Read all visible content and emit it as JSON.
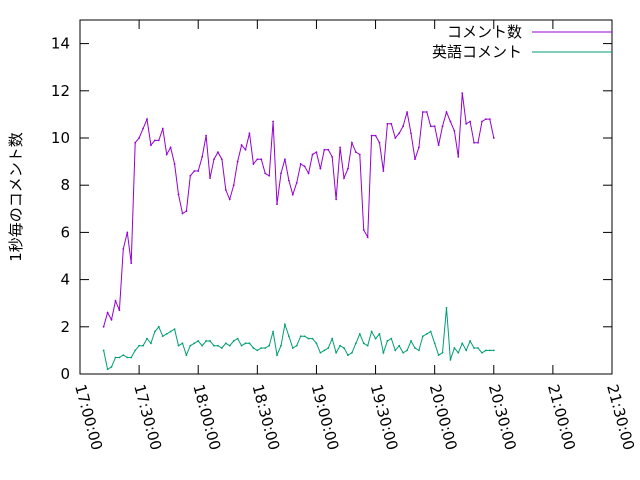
{
  "chart_data": {
    "type": "line",
    "title": "",
    "xlabel": "",
    "ylabel": "1秒毎のコメント数",
    "xlim": [
      "17:00:00",
      "21:30:00"
    ],
    "ylim": [
      0,
      15
    ],
    "grid": false,
    "legend_position": "top-right",
    "x_ticks": [
      "17:00:00",
      "17:30:00",
      "18:00:00",
      "18:30:00",
      "19:00:00",
      "19:30:00",
      "20:00:00",
      "20:30:00",
      "21:00:00",
      "21:30:00"
    ],
    "y_ticks": [
      "0",
      "2",
      "4",
      "6",
      "8",
      "10",
      "12",
      "14"
    ],
    "series": [
      {
        "name": "コメント数",
        "color": "#9400d3",
        "points": [
          [
            "17:12:00",
            2.0
          ],
          [
            "17:14:00",
            2.6
          ],
          [
            "17:16:00",
            2.3
          ],
          [
            "17:18:00",
            3.1
          ],
          [
            "17:20:00",
            2.7
          ],
          [
            "17:22:00",
            5.3
          ],
          [
            "17:24:00",
            6.0
          ],
          [
            "17:26:00",
            4.7
          ],
          [
            "17:28:00",
            9.8
          ],
          [
            "17:30:00",
            10.0
          ],
          [
            "17:32:00",
            10.4
          ],
          [
            "17:34:00",
            10.8
          ],
          [
            "17:36:00",
            9.7
          ],
          [
            "17:38:00",
            9.9
          ],
          [
            "17:40:00",
            9.9
          ],
          [
            "17:42:00",
            10.4
          ],
          [
            "17:44:00",
            9.3
          ],
          [
            "17:46:00",
            9.6
          ],
          [
            "17:48:00",
            8.9
          ],
          [
            "17:50:00",
            7.6
          ],
          [
            "17:52:00",
            6.8
          ],
          [
            "17:54:00",
            6.9
          ],
          [
            "17:56:00",
            8.4
          ],
          [
            "17:58:00",
            8.6
          ],
          [
            "18:00:00",
            8.6
          ],
          [
            "18:02:00",
            9.2
          ],
          [
            "18:04:00",
            10.1
          ],
          [
            "18:06:00",
            8.3
          ],
          [
            "18:08:00",
            9.1
          ],
          [
            "18:10:00",
            9.4
          ],
          [
            "18:12:00",
            9.1
          ],
          [
            "18:14:00",
            7.8
          ],
          [
            "18:16:00",
            7.4
          ],
          [
            "18:18:00",
            8.0
          ],
          [
            "18:20:00",
            9.0
          ],
          [
            "18:22:00",
            9.7
          ],
          [
            "18:24:00",
            9.5
          ],
          [
            "18:26:00",
            10.2
          ],
          [
            "18:28:00",
            8.9
          ],
          [
            "18:30:00",
            9.1
          ],
          [
            "18:32:00",
            9.1
          ],
          [
            "18:34:00",
            8.5
          ],
          [
            "18:36:00",
            8.4
          ],
          [
            "18:38:00",
            10.7
          ],
          [
            "18:40:00",
            7.2
          ],
          [
            "18:42:00",
            8.5
          ],
          [
            "18:44:00",
            9.1
          ],
          [
            "18:46:00",
            8.2
          ],
          [
            "18:48:00",
            7.6
          ],
          [
            "18:50:00",
            8.1
          ],
          [
            "18:52:00",
            8.9
          ],
          [
            "18:54:00",
            8.8
          ],
          [
            "18:56:00",
            8.5
          ],
          [
            "18:58:00",
            9.3
          ],
          [
            "19:00:00",
            9.4
          ],
          [
            "19:02:00",
            8.7
          ],
          [
            "19:04:00",
            9.5
          ],
          [
            "19:06:00",
            9.5
          ],
          [
            "19:08:00",
            9.2
          ],
          [
            "19:10:00",
            7.4
          ],
          [
            "19:12:00",
            9.6
          ],
          [
            "19:14:00",
            8.3
          ],
          [
            "19:16:00",
            8.7
          ],
          [
            "19:18:00",
            9.8
          ],
          [
            "19:20:00",
            9.4
          ],
          [
            "19:22:00",
            9.3
          ],
          [
            "19:24:00",
            6.1
          ],
          [
            "19:26:00",
            5.8
          ],
          [
            "19:28:00",
            10.1
          ],
          [
            "19:30:00",
            10.1
          ],
          [
            "19:32:00",
            9.8
          ],
          [
            "19:34:00",
            8.6
          ],
          [
            "19:36:00",
            10.6
          ],
          [
            "19:38:00",
            10.6
          ],
          [
            "19:40:00",
            10.0
          ],
          [
            "19:42:00",
            10.2
          ],
          [
            "19:44:00",
            10.5
          ],
          [
            "19:46:00",
            11.1
          ],
          [
            "19:48:00",
            10.2
          ],
          [
            "19:50:00",
            9.1
          ],
          [
            "19:52:00",
            9.6
          ],
          [
            "19:54:00",
            11.1
          ],
          [
            "19:56:00",
            11.1
          ],
          [
            "19:58:00",
            10.5
          ],
          [
            "20:00:00",
            10.5
          ],
          [
            "20:02:00",
            9.7
          ],
          [
            "20:04:00",
            10.5
          ],
          [
            "20:06:00",
            11.1
          ],
          [
            "20:08:00",
            10.7
          ],
          [
            "20:10:00",
            10.3
          ],
          [
            "20:12:00",
            9.2
          ],
          [
            "20:14:00",
            11.9
          ],
          [
            "20:16:00",
            10.6
          ],
          [
            "20:18:00",
            10.7
          ],
          [
            "20:20:00",
            9.8
          ],
          [
            "20:22:00",
            9.8
          ],
          [
            "20:24:00",
            10.7
          ],
          [
            "20:26:00",
            10.8
          ],
          [
            "20:28:00",
            10.8
          ],
          [
            "20:30:00",
            10.0
          ]
        ]
      },
      {
        "name": "英語コメント",
        "color": "#009e73",
        "points": [
          [
            "17:12:00",
            1.0
          ],
          [
            "17:14:00",
            0.2
          ],
          [
            "17:16:00",
            0.3
          ],
          [
            "17:18:00",
            0.7
          ],
          [
            "17:20:00",
            0.7
          ],
          [
            "17:22:00",
            0.8
          ],
          [
            "17:24:00",
            0.7
          ],
          [
            "17:26:00",
            0.7
          ],
          [
            "17:28:00",
            1.0
          ],
          [
            "17:30:00",
            1.2
          ],
          [
            "17:32:00",
            1.2
          ],
          [
            "17:34:00",
            1.5
          ],
          [
            "17:36:00",
            1.3
          ],
          [
            "17:38:00",
            1.8
          ],
          [
            "17:40:00",
            2.0
          ],
          [
            "17:42:00",
            1.6
          ],
          [
            "17:44:00",
            1.7
          ],
          [
            "17:46:00",
            1.8
          ],
          [
            "17:48:00",
            1.9
          ],
          [
            "17:50:00",
            1.2
          ],
          [
            "17:52:00",
            1.3
          ],
          [
            "17:54:00",
            0.8
          ],
          [
            "17:56:00",
            1.2
          ],
          [
            "17:58:00",
            1.3
          ],
          [
            "18:00:00",
            1.4
          ],
          [
            "18:02:00",
            1.2
          ],
          [
            "18:04:00",
            1.4
          ],
          [
            "18:06:00",
            1.4
          ],
          [
            "18:08:00",
            1.2
          ],
          [
            "18:10:00",
            1.2
          ],
          [
            "18:12:00",
            1.1
          ],
          [
            "18:14:00",
            1.3
          ],
          [
            "18:16:00",
            1.2
          ],
          [
            "18:18:00",
            1.4
          ],
          [
            "18:20:00",
            1.5
          ],
          [
            "18:22:00",
            1.2
          ],
          [
            "18:24:00",
            1.3
          ],
          [
            "18:26:00",
            1.3
          ],
          [
            "18:28:00",
            1.1
          ],
          [
            "18:30:00",
            1.0
          ],
          [
            "18:32:00",
            1.1
          ],
          [
            "18:34:00",
            1.1
          ],
          [
            "18:36:00",
            1.2
          ],
          [
            "18:38:00",
            1.8
          ],
          [
            "18:40:00",
            0.8
          ],
          [
            "18:42:00",
            1.2
          ],
          [
            "18:44:00",
            2.1
          ],
          [
            "18:46:00",
            1.6
          ],
          [
            "18:48:00",
            1.1
          ],
          [
            "18:50:00",
            1.2
          ],
          [
            "18:52:00",
            1.6
          ],
          [
            "18:54:00",
            1.6
          ],
          [
            "18:56:00",
            1.5
          ],
          [
            "18:58:00",
            1.5
          ],
          [
            "19:00:00",
            1.3
          ],
          [
            "19:02:00",
            0.9
          ],
          [
            "19:04:00",
            1.0
          ],
          [
            "19:06:00",
            1.1
          ],
          [
            "19:08:00",
            1.5
          ],
          [
            "19:10:00",
            0.9
          ],
          [
            "19:12:00",
            1.2
          ],
          [
            "19:14:00",
            1.1
          ],
          [
            "19:16:00",
            0.8
          ],
          [
            "19:18:00",
            0.9
          ],
          [
            "19:20:00",
            1.3
          ],
          [
            "19:22:00",
            1.7
          ],
          [
            "19:24:00",
            1.3
          ],
          [
            "19:26:00",
            1.2
          ],
          [
            "19:28:00",
            1.8
          ],
          [
            "19:30:00",
            1.5
          ],
          [
            "19:32:00",
            1.7
          ],
          [
            "19:34:00",
            0.9
          ],
          [
            "19:36:00",
            1.4
          ],
          [
            "19:38:00",
            1.5
          ],
          [
            "19:40:00",
            1.0
          ],
          [
            "19:42:00",
            1.2
          ],
          [
            "19:44:00",
            0.9
          ],
          [
            "19:46:00",
            1.0
          ],
          [
            "19:48:00",
            1.4
          ],
          [
            "19:50:00",
            1.1
          ],
          [
            "19:52:00",
            1.0
          ],
          [
            "19:54:00",
            1.6
          ],
          [
            "19:56:00",
            1.7
          ],
          [
            "19:58:00",
            1.8
          ],
          [
            "20:00:00",
            1.3
          ],
          [
            "20:02:00",
            0.8
          ],
          [
            "20:04:00",
            0.9
          ],
          [
            "20:06:00",
            2.8
          ],
          [
            "20:08:00",
            0.6
          ],
          [
            "20:10:00",
            1.1
          ],
          [
            "20:12:00",
            0.9
          ],
          [
            "20:14:00",
            1.3
          ],
          [
            "20:16:00",
            1.0
          ],
          [
            "20:18:00",
            1.4
          ],
          [
            "20:20:00",
            1.1
          ],
          [
            "20:22:00",
            1.1
          ],
          [
            "20:24:00",
            0.9
          ],
          [
            "20:26:00",
            1.0
          ],
          [
            "20:28:00",
            1.0
          ],
          [
            "20:30:00",
            1.0
          ]
        ]
      }
    ]
  }
}
